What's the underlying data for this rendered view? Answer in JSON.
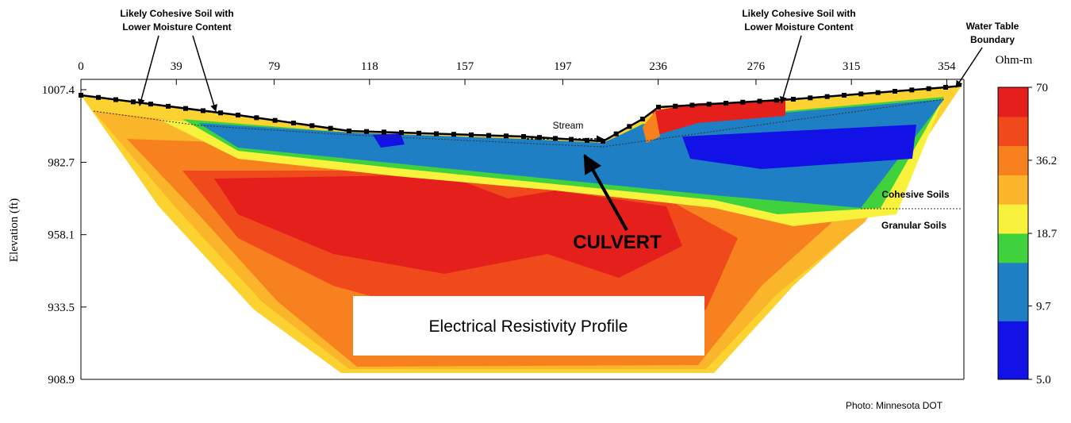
{
  "chart_data": {
    "type": "contour",
    "ylabel": "Elevation (ft)",
    "xlim": [
      0,
      361
    ],
    "xticks": [
      0,
      39,
      79,
      118,
      157,
      197,
      236,
      276,
      315,
      354
    ],
    "ylim": [
      908.9,
      1007.4
    ],
    "yticks": [
      1007.4,
      982.7,
      958.1,
      933.5,
      908.9
    ],
    "colorbar": {
      "label": "Ohm-m",
      "log": true,
      "lim": [
        5,
        70
      ],
      "ticks": [
        70,
        36.2,
        18.7,
        9.7,
        {
          "value": 5,
          "label": "5.0"
        }
      ],
      "colors": [
        "#1212e6",
        "#1212e6",
        "#1f7fc4",
        "#1f7fc4",
        "#3fd23c",
        "#f8f23c",
        "#fbb52b",
        "#f7801f",
        "#f04a1c",
        "#e41f1c"
      ]
    },
    "annotations": {
      "left_soil": [
        "Likely Cohesive Soil with",
        "Lower Moisture Content"
      ],
      "right_soil": [
        "Likely Cohesive Soil with",
        "Lower Moisture Content"
      ],
      "water_table": [
        "Water Table",
        "Boundary"
      ],
      "stream": "Stream",
      "culvert": "CULVERT",
      "cohesive": "Cohesive Soils",
      "granular": "Granular Soils",
      "profile_title": "Electrical Resistivity Profile",
      "credit": "Photo: Minnesota DOT"
    }
  }
}
